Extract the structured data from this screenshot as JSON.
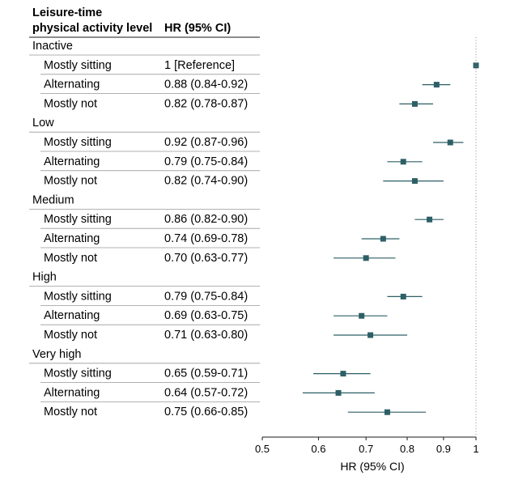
{
  "header": {
    "col1_line1": "Leisure-time",
    "col1_line2": "physical activity level",
    "col2": "HR (95% CI)"
  },
  "chart_data": {
    "type": "forest",
    "xlabel": "HR (95% CI)",
    "xscale": "log",
    "xlim": [
      0.5,
      1
    ],
    "xticks": [
      0.5,
      0.6,
      0.7,
      0.8,
      0.9,
      1
    ],
    "xtick_labels": [
      "0.5",
      "0.6",
      "0.7",
      "0.8",
      "0.9",
      "1"
    ],
    "reference_line": 1,
    "groups": [
      {
        "label": "Inactive",
        "rows": [
          {
            "label": "Mostly sitting",
            "hr_text": "1 [Reference]",
            "hr": 1,
            "lo": 1,
            "hi": 1
          },
          {
            "label": "Alternating",
            "hr_text": "0.88 (0.84-0.92)",
            "hr": 0.88,
            "lo": 0.84,
            "hi": 0.92
          },
          {
            "label": "Mostly not",
            "hr_text": "0.82 (0.78-0.87)",
            "hr": 0.82,
            "lo": 0.78,
            "hi": 0.87
          }
        ]
      },
      {
        "label": "Low",
        "rows": [
          {
            "label": "Mostly sitting",
            "hr_text": "0.92 (0.87-0.96)",
            "hr": 0.92,
            "lo": 0.87,
            "hi": 0.96
          },
          {
            "label": "Alternating",
            "hr_text": "0.79 (0.75-0.84)",
            "hr": 0.79,
            "lo": 0.75,
            "hi": 0.84
          },
          {
            "label": "Mostly not",
            "hr_text": "0.82 (0.74-0.90)",
            "hr": 0.82,
            "lo": 0.74,
            "hi": 0.9
          }
        ]
      },
      {
        "label": "Medium",
        "rows": [
          {
            "label": "Mostly sitting",
            "hr_text": "0.86 (0.82-0.90)",
            "hr": 0.86,
            "lo": 0.82,
            "hi": 0.9
          },
          {
            "label": "Alternating",
            "hr_text": "0.74 (0.69-0.78)",
            "hr": 0.74,
            "lo": 0.69,
            "hi": 0.78
          },
          {
            "label": "Mostly not",
            "hr_text": "0.70 (0.63-0.77)",
            "hr": 0.7,
            "lo": 0.63,
            "hi": 0.77
          }
        ]
      },
      {
        "label": "High",
        "rows": [
          {
            "label": "Mostly sitting",
            "hr_text": "0.79 (0.75-0.84)",
            "hr": 0.79,
            "lo": 0.75,
            "hi": 0.84
          },
          {
            "label": "Alternating",
            "hr_text": "0.69 (0.63-0.75)",
            "hr": 0.69,
            "lo": 0.63,
            "hi": 0.75
          },
          {
            "label": "Mostly not",
            "hr_text": "0.71 (0.63-0.80)",
            "hr": 0.71,
            "lo": 0.63,
            "hi": 0.8
          }
        ]
      },
      {
        "label": "Very high",
        "rows": [
          {
            "label": "Mostly sitting",
            "hr_text": "0.65 (0.59-0.71)",
            "hr": 0.65,
            "lo": 0.59,
            "hi": 0.71
          },
          {
            "label": "Alternating",
            "hr_text": "0.64 (0.57-0.72)",
            "hr": 0.64,
            "lo": 0.57,
            "hi": 0.72
          },
          {
            "label": "Mostly not",
            "hr_text": "0.75 (0.66-0.85)",
            "hr": 0.75,
            "lo": 0.66,
            "hi": 0.85
          }
        ]
      }
    ],
    "colors": {
      "marker": "#2d5f66",
      "ci_line": "#2d5f66",
      "rule": "#999999",
      "text": "#1a1a1a"
    }
  }
}
